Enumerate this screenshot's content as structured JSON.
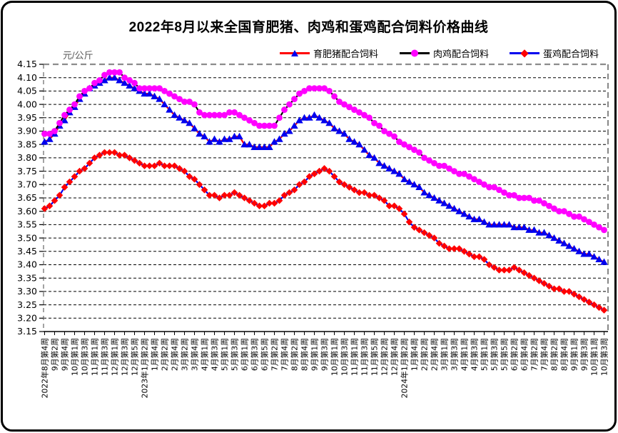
{
  "title": "2022年8月以来全国育肥猪、肉鸡和蛋鸡配合饲料价格曲线",
  "y_unit_label": "元/公斤",
  "colors": {
    "pig_line": "#ff0000",
    "pig_marker": "#0000ee",
    "broiler_line": "#000000",
    "broiler_marker": "#ff00ff",
    "layer_line": "#0000ee",
    "layer_marker": "#ff0000",
    "grid": "#000000",
    "plot_border": "#8c8c8c",
    "axis": "#000000"
  },
  "chart_data": {
    "type": "line",
    "title": "2022年8月以来全国育肥猪、肉鸡和蛋鸡配合饲料价格曲线",
    "ylabel": "元/公斤",
    "ylim": [
      3.15,
      4.15
    ],
    "ytick_step": 0.05,
    "grid": "horizontal-dashed",
    "legend_position": "top",
    "points_count": 113,
    "x_label_every": 2,
    "x_labels": [
      "2022年8月第4周",
      "9月第2周",
      "9月第4周",
      "10月第1周",
      "10月第3周",
      "11月第1周",
      "11月第3周",
      "12月第1周",
      "12月第3周",
      "12月第5周",
      "2023年1月第2周",
      "1月第4周",
      "2月第2周",
      "2月第4周",
      "3月第2周",
      "3月第4周",
      "4月第1周",
      "4月第3周",
      "5月第1周",
      "5月第3周",
      "6月第1周",
      "6月第3周",
      "6月第5周",
      "7月第2周",
      "7月第4周",
      "8月第2周",
      "8月第4周",
      "9月第1周",
      "9月第3周",
      "10月第1周",
      "10月第3周",
      "11月第1周",
      "11月第3周",
      "11月第5周",
      "12月第2周",
      "12月第4周",
      "2024年1月第2周",
      "1月第4周",
      "2月第2周",
      "2月第4周",
      "3月第1周",
      "3月第3周",
      "4月第1周",
      "4月第3周",
      "5月第1周",
      "5月第3周",
      "5月第5周",
      "6月第2周",
      "6月第4周",
      "7月第2周",
      "7月第4周",
      "8月第2周",
      "8月第4周",
      "9月第1周",
      "9月第3周",
      "10月第1周",
      "10月第3周"
    ],
    "series": [
      {
        "name": "育肥猪配合饲料",
        "line_color": "#ff0000",
        "marker": "triangle",
        "marker_color": "#0000ee",
        "values": [
          3.86,
          3.87,
          3.89,
          3.92,
          3.94,
          3.97,
          3.99,
          4.02,
          4.04,
          4.06,
          4.07,
          4.08,
          4.09,
          4.1,
          4.1,
          4.09,
          4.08,
          4.07,
          4.06,
          4.05,
          4.04,
          4.04,
          4.03,
          4.02,
          4.0,
          3.98,
          3.96,
          3.95,
          3.94,
          3.93,
          3.91,
          3.89,
          3.88,
          3.86,
          3.87,
          3.86,
          3.87,
          3.87,
          3.88,
          3.88,
          3.85,
          3.85,
          3.84,
          3.84,
          3.84,
          3.84,
          3.86,
          3.87,
          3.89,
          3.9,
          3.92,
          3.94,
          3.95,
          3.95,
          3.96,
          3.95,
          3.94,
          3.93,
          3.91,
          3.9,
          3.89,
          3.87,
          3.86,
          3.85,
          3.83,
          3.81,
          3.8,
          3.78,
          3.77,
          3.76,
          3.75,
          3.74,
          3.72,
          3.71,
          3.7,
          3.69,
          3.67,
          3.66,
          3.65,
          3.64,
          3.63,
          3.62,
          3.61,
          3.6,
          3.59,
          3.58,
          3.57,
          3.57,
          3.56,
          3.55,
          3.55,
          3.55,
          3.55,
          3.55,
          3.54,
          3.54,
          3.54,
          3.53,
          3.53,
          3.52,
          3.52,
          3.51,
          3.5,
          3.49,
          3.48,
          3.47,
          3.46,
          3.45,
          3.44,
          3.44,
          3.43,
          3.42,
          3.41
        ]
      },
      {
        "name": "肉鸡配合饲料",
        "line_color": "#000000",
        "marker": "circle",
        "marker_color": "#ff00ff",
        "values": [
          3.89,
          3.89,
          3.9,
          3.93,
          3.96,
          3.98,
          4.0,
          4.03,
          4.05,
          4.06,
          4.08,
          4.09,
          4.11,
          4.12,
          4.12,
          4.12,
          4.1,
          4.09,
          4.08,
          4.06,
          4.06,
          4.06,
          4.06,
          4.06,
          4.05,
          4.04,
          4.03,
          4.02,
          4.01,
          4.01,
          4.0,
          3.97,
          3.96,
          3.96,
          3.96,
          3.96,
          3.96,
          3.97,
          3.97,
          3.96,
          3.95,
          3.94,
          3.93,
          3.92,
          3.92,
          3.92,
          3.92,
          3.95,
          3.98,
          4.0,
          4.02,
          4.04,
          4.05,
          4.06,
          4.06,
          4.06,
          4.06,
          4.05,
          4.03,
          4.01,
          4.0,
          3.99,
          3.98,
          3.97,
          3.96,
          3.95,
          3.93,
          3.92,
          3.9,
          3.89,
          3.88,
          3.86,
          3.85,
          3.84,
          3.83,
          3.82,
          3.8,
          3.79,
          3.78,
          3.77,
          3.77,
          3.76,
          3.75,
          3.74,
          3.74,
          3.73,
          3.72,
          3.71,
          3.7,
          3.69,
          3.69,
          3.68,
          3.67,
          3.66,
          3.66,
          3.65,
          3.65,
          3.65,
          3.64,
          3.64,
          3.63,
          3.62,
          3.61,
          3.6,
          3.6,
          3.59,
          3.58,
          3.58,
          3.57,
          3.56,
          3.55,
          3.54,
          3.53
        ]
      },
      {
        "name": "蛋鸡配合饲料",
        "line_color": "#0000ee",
        "marker": "diamond",
        "marker_color": "#ff0000",
        "values": [
          3.61,
          3.62,
          3.64,
          3.66,
          3.69,
          3.71,
          3.73,
          3.75,
          3.76,
          3.78,
          3.8,
          3.81,
          3.82,
          3.82,
          3.82,
          3.81,
          3.81,
          3.8,
          3.79,
          3.78,
          3.77,
          3.77,
          3.77,
          3.78,
          3.77,
          3.77,
          3.77,
          3.76,
          3.75,
          3.73,
          3.72,
          3.7,
          3.68,
          3.66,
          3.66,
          3.65,
          3.66,
          3.66,
          3.67,
          3.66,
          3.65,
          3.64,
          3.63,
          3.62,
          3.62,
          3.63,
          3.63,
          3.64,
          3.66,
          3.67,
          3.68,
          3.7,
          3.71,
          3.73,
          3.74,
          3.75,
          3.76,
          3.75,
          3.73,
          3.71,
          3.7,
          3.69,
          3.68,
          3.67,
          3.67,
          3.66,
          3.66,
          3.65,
          3.64,
          3.62,
          3.62,
          3.61,
          3.59,
          3.56,
          3.54,
          3.53,
          3.52,
          3.51,
          3.5,
          3.48,
          3.47,
          3.46,
          3.46,
          3.46,
          3.45,
          3.44,
          3.43,
          3.43,
          3.42,
          3.4,
          3.39,
          3.38,
          3.38,
          3.38,
          3.39,
          3.38,
          3.37,
          3.36,
          3.35,
          3.34,
          3.33,
          3.32,
          3.31,
          3.31,
          3.3,
          3.3,
          3.29,
          3.28,
          3.27,
          3.26,
          3.25,
          3.24,
          3.23
        ]
      }
    ]
  }
}
